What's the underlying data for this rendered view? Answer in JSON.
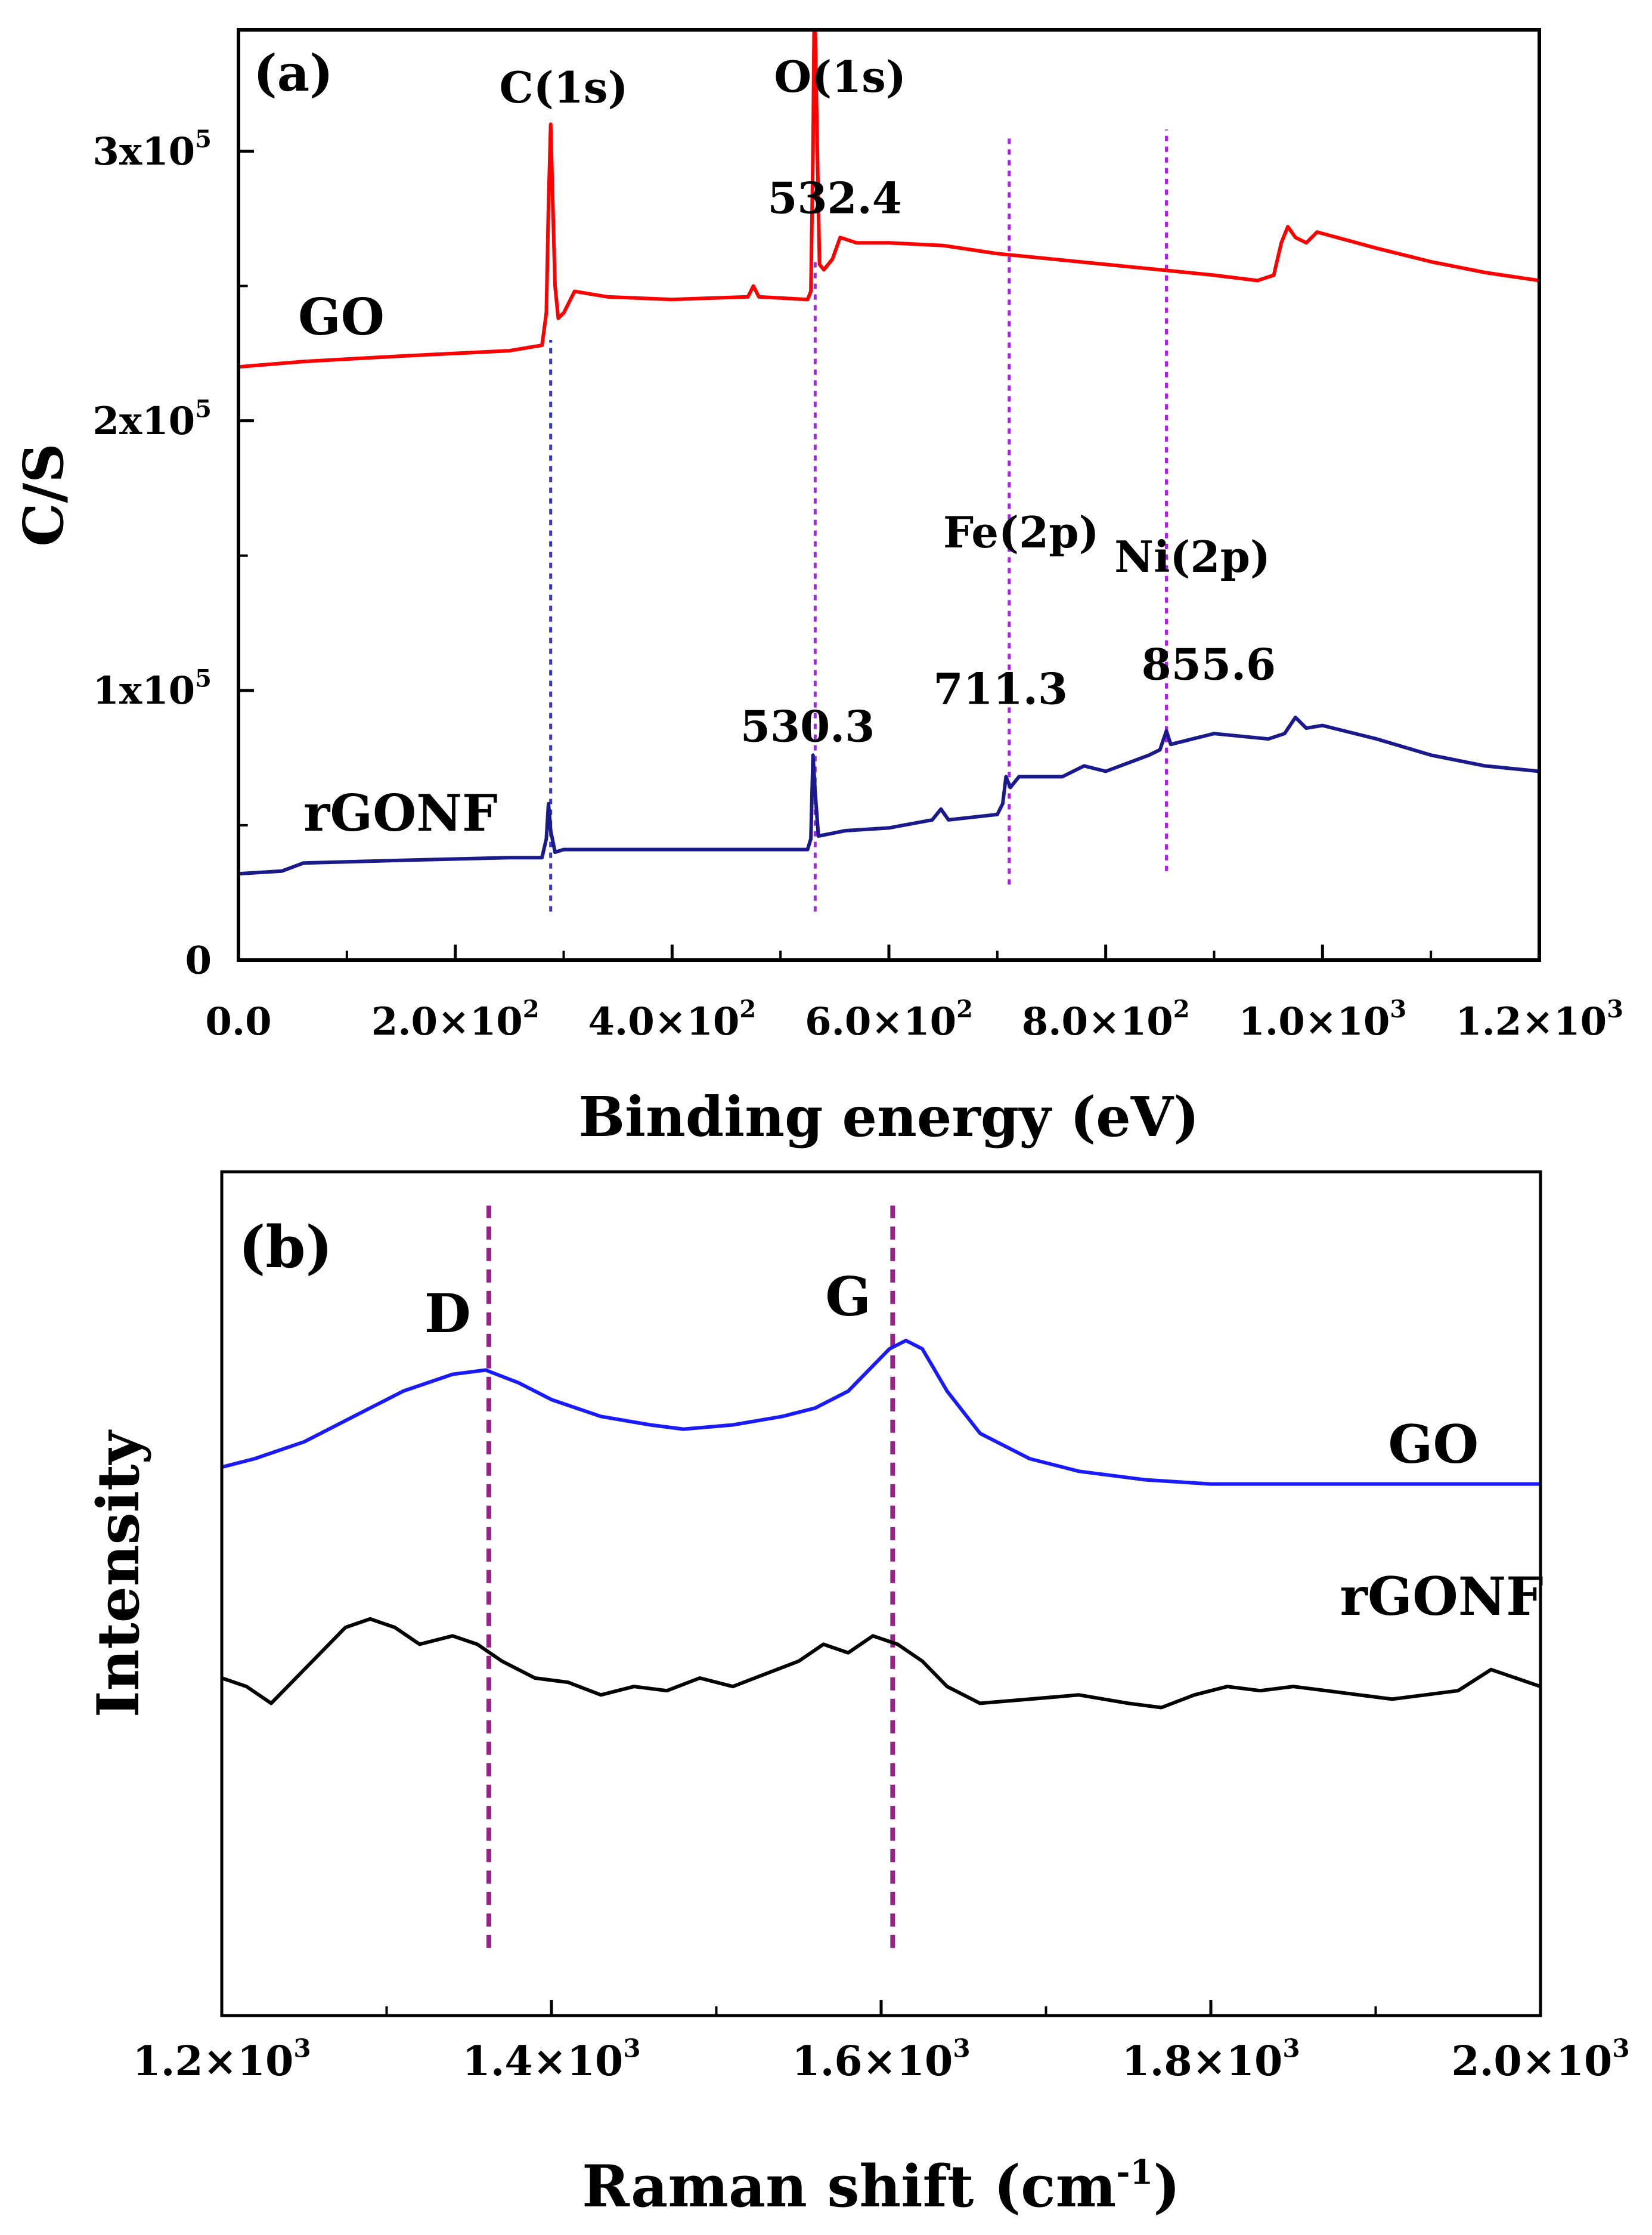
{
  "chart_data": [
    {
      "type": "line",
      "panel_label": "(a)",
      "xlabel": "Binding energy (eV)",
      "ylabel": "C/S",
      "xlim": [
        0,
        1200
      ],
      "ylim": [
        0,
        345000
      ],
      "x_ticks": [
        {
          "value": 0,
          "label": "0.0"
        },
        {
          "value": 200,
          "label": "2.0×10",
          "exp": "2"
        },
        {
          "value": 400,
          "label": "4.0×10",
          "exp": "2"
        },
        {
          "value": 600,
          "label": "6.0×10",
          "exp": "2"
        },
        {
          "value": 800,
          "label": "8.0×10",
          "exp": "2"
        },
        {
          "value": 1000,
          "label": "1.0×10",
          "exp": "3"
        },
        {
          "value": 1200,
          "label": "1.2×10",
          "exp": "3"
        }
      ],
      "y_ticks": [
        {
          "value": 0,
          "label": "0"
        },
        {
          "value": 100000,
          "label": "1x10",
          "exp": "5"
        },
        {
          "value": 200000,
          "label": "2x10",
          "exp": "5"
        },
        {
          "value": 300000,
          "label": "3x10",
          "exp": "5"
        }
      ],
      "series": [
        {
          "name": "GO",
          "color": "#ff0000",
          "points": [
            [
              0,
              220000
            ],
            [
              60,
              222000
            ],
            [
              150,
              224000
            ],
            [
              250,
              226000
            ],
            [
              280,
              228000
            ],
            [
              284,
              240000
            ],
            [
              286,
              280000
            ],
            [
              288,
              310000
            ],
            [
              290,
              280000
            ],
            [
              292,
              250000
            ],
            [
              295,
              238000
            ],
            [
              300,
              240000
            ],
            [
              310,
              248000
            ],
            [
              340,
              246000
            ],
            [
              400,
              245000
            ],
            [
              470,
              246000
            ],
            [
              475,
              250000
            ],
            [
              480,
              246000
            ],
            [
              525,
              245000
            ],
            [
              528,
              248000
            ],
            [
              530,
              300000
            ],
            [
              531,
              345000
            ],
            [
              532,
              345000
            ],
            [
              534,
              300000
            ],
            [
              536,
              258000
            ],
            [
              540,
              256000
            ],
            [
              548,
              260000
            ],
            [
              555,
              268000
            ],
            [
              570,
              266000
            ],
            [
              600,
              266000
            ],
            [
              650,
              265000
            ],
            [
              700,
              262000
            ],
            [
              750,
              260000
            ],
            [
              800,
              258000
            ],
            [
              850,
              256000
            ],
            [
              900,
              254000
            ],
            [
              940,
              252000
            ],
            [
              955,
              254000
            ],
            [
              962,
              266000
            ],
            [
              968,
              272000
            ],
            [
              975,
              268000
            ],
            [
              985,
              266000
            ],
            [
              995,
              270000
            ],
            [
              1050,
              264000
            ],
            [
              1100,
              259000
            ],
            [
              1150,
              255000
            ],
            [
              1200,
              252000
            ]
          ],
          "label_pos": {
            "x": 55,
            "y": 232000
          }
        },
        {
          "name": "rGONF",
          "color": "#1a1a8c",
          "points": [
            [
              0,
              32000
            ],
            [
              40,
              33000
            ],
            [
              60,
              36000
            ],
            [
              150,
              37000
            ],
            [
              250,
              38000
            ],
            [
              280,
              38000
            ],
            [
              284,
              45000
            ],
            [
              286,
              58000
            ],
            [
              288,
              48000
            ],
            [
              292,
              40000
            ],
            [
              300,
              41000
            ],
            [
              400,
              41000
            ],
            [
              525,
              41000
            ],
            [
              528,
              45000
            ],
            [
              530,
              76000
            ],
            [
              532,
              62000
            ],
            [
              535,
              46000
            ],
            [
              560,
              48000
            ],
            [
              600,
              49000
            ],
            [
              640,
              52000
            ],
            [
              648,
              56000
            ],
            [
              655,
              52000
            ],
            [
              700,
              54000
            ],
            [
              705,
              58000
            ],
            [
              708,
              68000
            ],
            [
              712,
              64000
            ],
            [
              720,
              68000
            ],
            [
              760,
              68000
            ],
            [
              780,
              72000
            ],
            [
              800,
              70000
            ],
            [
              840,
              76000
            ],
            [
              850,
              78000
            ],
            [
              856,
              85000
            ],
            [
              860,
              80000
            ],
            [
              880,
              82000
            ],
            [
              900,
              84000
            ],
            [
              950,
              82000
            ],
            [
              965,
              84000
            ],
            [
              975,
              90000
            ],
            [
              985,
              86000
            ],
            [
              1000,
              87000
            ],
            [
              1050,
              82000
            ],
            [
              1100,
              76000
            ],
            [
              1150,
              72000
            ],
            [
              1200,
              70000
            ]
          ],
          "label_pos": {
            "x": 60,
            "y": 48000
          }
        }
      ],
      "reference_lines": [
        {
          "x": 288,
          "y_from": 18000,
          "y_to": 230000,
          "color": "#3333dd"
        },
        {
          "x": 532,
          "y_from": 18000,
          "y_to": 260000,
          "color": "#aa22ee"
        },
        {
          "x": 711,
          "y_from": 28000,
          "y_to": 305000,
          "color": "#aa22ee"
        },
        {
          "x": 856,
          "y_from": 33000,
          "y_to": 308000,
          "color": "#aa22ee"
        }
      ],
      "annotations": [
        {
          "text": "C(1s)",
          "x": 300,
          "y": 318000
        },
        {
          "text": "O(1s)",
          "x": 555,
          "y": 322000
        },
        {
          "text": "532.4",
          "x": 550,
          "y": 277000
        },
        {
          "text": "Fe(2p)",
          "x": 722,
          "y": 153000
        },
        {
          "text": "Ni(2p)",
          "x": 880,
          "y": 144000
        },
        {
          "text": "530.3",
          "x": 525,
          "y": 81000
        },
        {
          "text": "711.3",
          "x": 703,
          "y": 95000
        },
        {
          "text": "855.6",
          "x": 895,
          "y": 104000
        }
      ]
    },
    {
      "type": "line",
      "panel_label": "(b)",
      "xlabel": "Raman shift (cm",
      "xlabel_exp": "-1",
      "xlabel_close": ")",
      "ylabel": "Intensity",
      "xlim": [
        1200,
        2000
      ],
      "ylim": [
        0,
        100
      ],
      "x_ticks": [
        {
          "value": 1200,
          "label": "1.2×10",
          "exp": "3"
        },
        {
          "value": 1400,
          "label": "1.4×10",
          "exp": "3"
        },
        {
          "value": 1600,
          "label": "1.6×10",
          "exp": "3"
        },
        {
          "value": 1800,
          "label": "1.8×10",
          "exp": "3"
        },
        {
          "value": 2000,
          "label": "2.0×10",
          "exp": "3"
        }
      ],
      "y_ticks": [],
      "series": [
        {
          "name": "GO",
          "color": "#1a1aff",
          "points": [
            [
              1200,
              65
            ],
            [
              1220,
              66
            ],
            [
              1250,
              68
            ],
            [
              1280,
              71
            ],
            [
              1310,
              74
            ],
            [
              1340,
              76
            ],
            [
              1360,
              76.5
            ],
            [
              1380,
              75
            ],
            [
              1400,
              73
            ],
            [
              1430,
              71
            ],
            [
              1460,
              70
            ],
            [
              1480,
              69.5
            ],
            [
              1510,
              70
            ],
            [
              1540,
              71
            ],
            [
              1560,
              72
            ],
            [
              1580,
              74
            ],
            [
              1595,
              77
            ],
            [
              1605,
              79
            ],
            [
              1615,
              80
            ],
            [
              1625,
              79
            ],
            [
              1640,
              74
            ],
            [
              1660,
              69
            ],
            [
              1690,
              66
            ],
            [
              1720,
              64.5
            ],
            [
              1760,
              63.5
            ],
            [
              1800,
              63
            ],
            [
              1850,
              63
            ],
            [
              1900,
              63
            ],
            [
              1950,
              63
            ],
            [
              2000,
              63
            ]
          ],
          "label_pos": {
            "x": 1935,
            "y": 65.5
          }
        },
        {
          "name": "rGONF",
          "color": "#000000",
          "points": [
            [
              1200,
              40
            ],
            [
              1215,
              39
            ],
            [
              1230,
              37
            ],
            [
              1245,
              40
            ],
            [
              1260,
              43
            ],
            [
              1275,
              46
            ],
            [
              1290,
              47
            ],
            [
              1305,
              46
            ],
            [
              1320,
              44
            ],
            [
              1340,
              45
            ],
            [
              1355,
              44
            ],
            [
              1370,
              42
            ],
            [
              1390,
              40
            ],
            [
              1410,
              39.5
            ],
            [
              1430,
              38
            ],
            [
              1450,
              39
            ],
            [
              1470,
              38.5
            ],
            [
              1490,
              40
            ],
            [
              1510,
              39
            ],
            [
              1530,
              40.5
            ],
            [
              1550,
              42
            ],
            [
              1565,
              44
            ],
            [
              1580,
              43
            ],
            [
              1595,
              45
            ],
            [
              1610,
              44
            ],
            [
              1625,
              42
            ],
            [
              1640,
              39
            ],
            [
              1660,
              37
            ],
            [
              1690,
              37.5
            ],
            [
              1720,
              38
            ],
            [
              1750,
              37
            ],
            [
              1770,
              36.5
            ],
            [
              1790,
              38
            ],
            [
              1810,
              39
            ],
            [
              1830,
              38.5
            ],
            [
              1850,
              39
            ],
            [
              1870,
              38.5
            ],
            [
              1890,
              38
            ],
            [
              1910,
              37.5
            ],
            [
              1930,
              38
            ],
            [
              1950,
              38.5
            ],
            [
              1970,
              41
            ],
            [
              1985,
              40
            ],
            [
              2000,
              39
            ]
          ],
          "label_pos": {
            "x": 1940,
            "y": 47.5
          }
        }
      ],
      "reference_lines": [
        {
          "x": 1362,
          "y_from": 8,
          "y_to": 96,
          "color": "#992288"
        },
        {
          "x": 1607,
          "y_from": 8,
          "y_to": 96,
          "color": "#992288"
        }
      ],
      "annotations": [
        {
          "text": "D",
          "x": 1337,
          "y": 81
        },
        {
          "text": "G",
          "x": 1580,
          "y": 83
        }
      ]
    }
  ]
}
